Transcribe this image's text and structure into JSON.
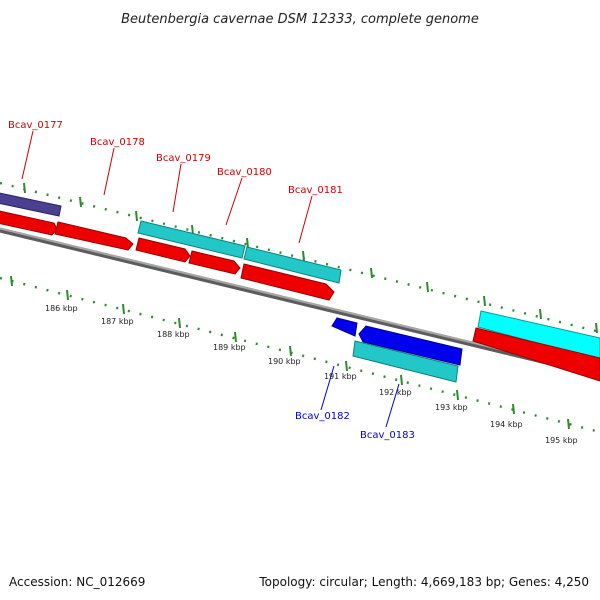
{
  "title": "Beutenbergia cavernae DSM 12333, complete genome",
  "footer": {
    "accession": "Accession: NC_012669",
    "summary": "Topology: circular; Length: 4,669,183 bp; Genes: 4,250"
  },
  "ticks": [
    "186 kbp",
    "187 kbp",
    "188 kbp",
    "189 kbp",
    "190 kbp",
    "191 kbp",
    "192 kbp",
    "193 kbp",
    "194 kbp",
    "195 kbp"
  ],
  "gene_labels": [
    "Bcav_0177",
    "Bcav_0178",
    "Bcav_0179",
    "Bcav_0180",
    "Bcav_0181",
    "Bcav_0182",
    "Bcav_0183"
  ],
  "colors": {
    "backbone": "#8a8a8a",
    "tick": "#2e8b2e",
    "cds_red": "#ee0000",
    "cds_red_dark": "#990000",
    "cds_cyan": "#22c8c8",
    "cds_cyan_dark": "#0f8080",
    "cds_bright_cyan": "#00ffff",
    "cds_blue": "#0000ee",
    "cds_purple": "#4b3f8f",
    "label_red": "#cc0000",
    "label_blue": "#0000cc"
  }
}
